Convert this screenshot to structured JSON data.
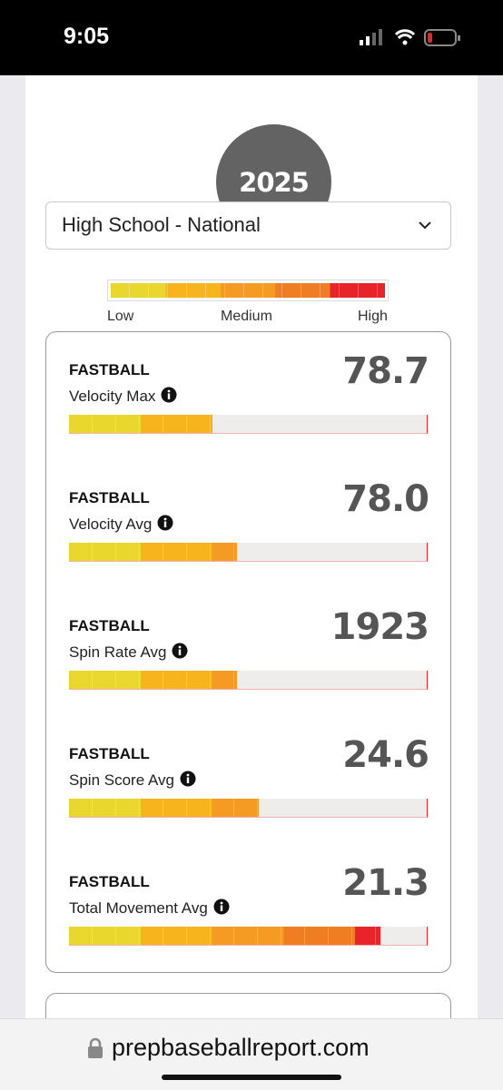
{
  "status_bar": {
    "time": "9:05"
  },
  "class_year": "2025",
  "dropdown": {
    "selected": "High School - National"
  },
  "legend": {
    "low": "Low",
    "medium": "Medium",
    "high": "High"
  },
  "metrics": [
    {
      "pitch": "FASTBALL",
      "label": "Velocity Max",
      "value": "78.7",
      "level": 40
    },
    {
      "pitch": "FASTBALL",
      "label": "Velocity Avg",
      "value": "78.0",
      "level": 47
    },
    {
      "pitch": "FASTBALL",
      "label": "Spin Rate Avg",
      "value": "1923",
      "level": 47
    },
    {
      "pitch": "FASTBALL",
      "label": "Spin Score Avg",
      "value": "24.6",
      "level": 53
    },
    {
      "pitch": "FASTBALL",
      "label": "Total Movement Avg",
      "value": "21.3",
      "level": 87
    }
  ],
  "url": "prepbaseballreport.com"
}
